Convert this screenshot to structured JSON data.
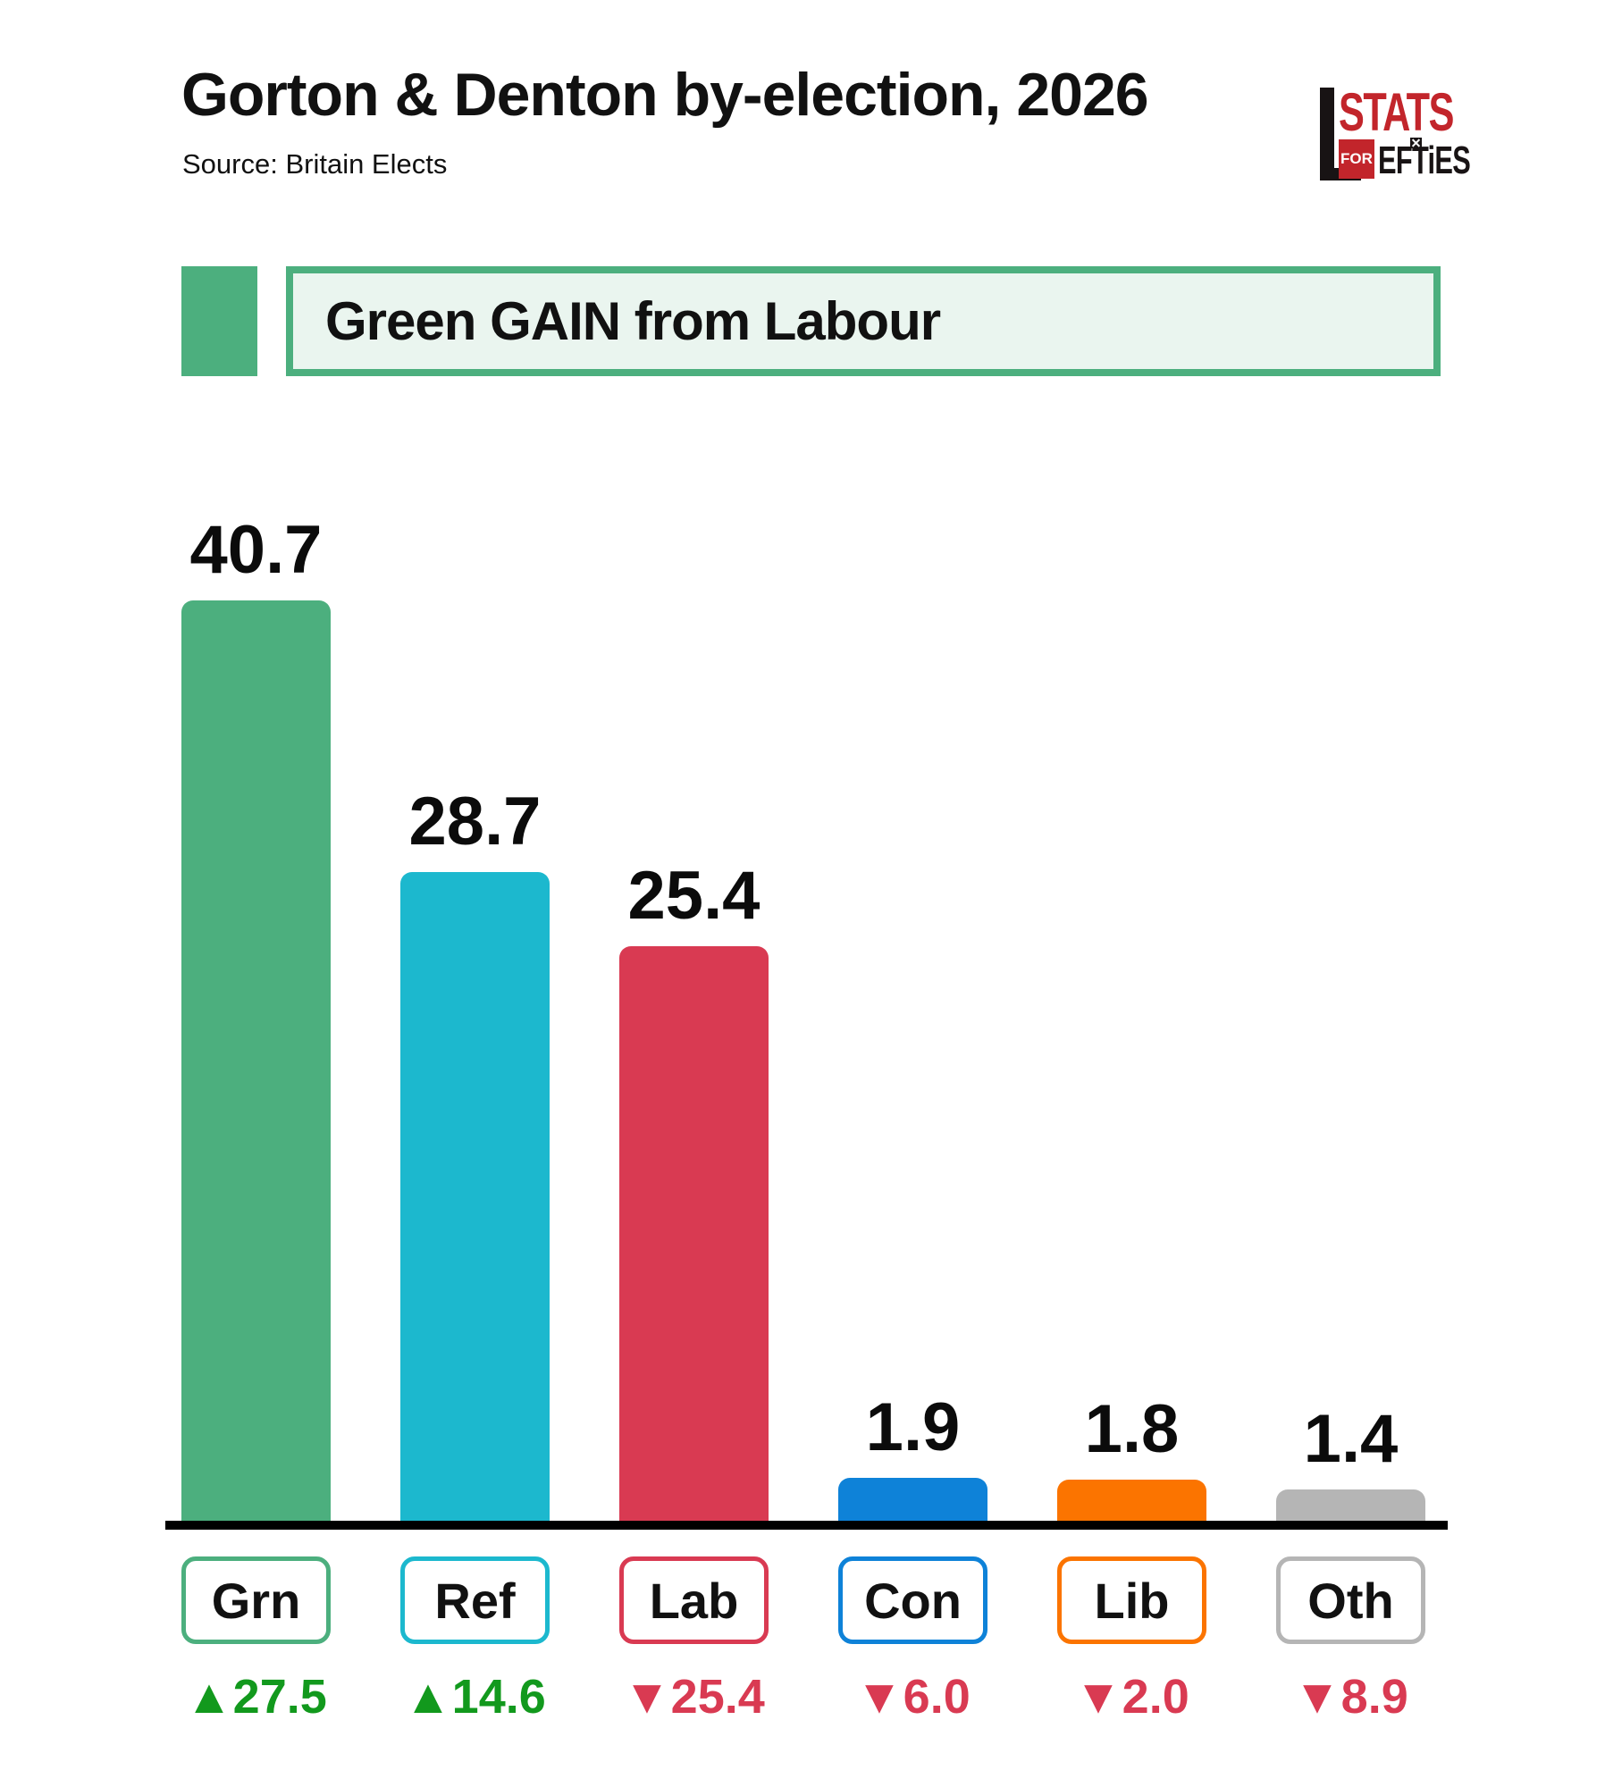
{
  "header": {
    "title": "Gorton & Denton by-election, 2026",
    "source": "Source: Britain Elects"
  },
  "logo": {
    "stats": "STATS",
    "for_label": "FOR",
    "efties": "EFTiES",
    "brand_red": "#C2252B"
  },
  "banner": {
    "text": "Green GAIN from Labour",
    "swatch_color": "#4CAF7E",
    "border_color": "#4CAF7E",
    "fill_color": "#EAF5EF"
  },
  "chart_data": {
    "type": "bar",
    "title": "Gorton & Denton by-election, 2026",
    "source": "Britain Elects",
    "categories": [
      "Grn",
      "Ref",
      "Lab",
      "Con",
      "Lib",
      "Oth"
    ],
    "values": [
      40.7,
      28.7,
      25.4,
      1.9,
      1.8,
      1.4
    ],
    "changes": [
      {
        "dir": "up",
        "label": "▲27.5"
      },
      {
        "dir": "up",
        "label": "▲14.6"
      },
      {
        "dir": "down",
        "label": "▼25.4"
      },
      {
        "dir": "down",
        "label": "▼6.0"
      },
      {
        "dir": "down",
        "label": "▼2.0"
      },
      {
        "dir": "down",
        "label": "▼8.9"
      }
    ],
    "bar_colors": [
      "#4CAF7E",
      "#1CB8CE",
      "#D93A52",
      "#0E82D8",
      "#FB7400",
      "#B5B5B5"
    ],
    "gain_color": "#12991D",
    "loss_color": "#D93A52",
    "ylim": [
      0,
      44
    ],
    "grid": false,
    "legend": false,
    "value_labels": "above-bars",
    "baseline_color": "#000000"
  }
}
